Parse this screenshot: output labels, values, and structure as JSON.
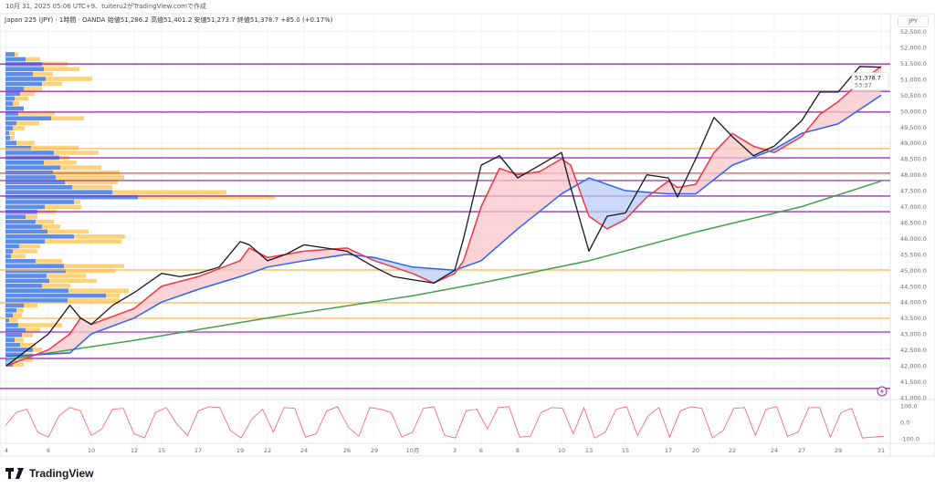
{
  "caption": "10月 31, 2025 05:06 UTC+9、tuiteru2がTradingView.comで作成",
  "legend": "Japan 225 (JPY) · 1時間 · OANDA  始値51,286.2  高値51,401.2  安値51,273.7  終値51,378.7  +85.0 (+0.17%)",
  "currency_label": "JPY",
  "logo_text": "TradingView",
  "colors": {
    "price": "#131722",
    "ma_fast": "#f23645",
    "ma_mid": "#2962ff",
    "ma_slow": "#43a047",
    "fill_up": "#f8c5c8",
    "fill_down": "#b8cdf6",
    "support_purple": "#9c27b0",
    "level_orange": "#ffb74d",
    "level_red": "#ef5350",
    "vp_blue": "#5b8def",
    "vp_yellow": "#ffd27a"
  },
  "chart_data": {
    "type": "line",
    "title": "Japan 225 (JPY) · 1時間 · OANDA",
    "ylim": [
      41000,
      52500
    ],
    "grid": true,
    "y_ticks": [
      "52,500.0",
      "52,000.0",
      "51,500.0",
      "51,000.0",
      "50,500.0",
      "50,000.0",
      "49,500.0",
      "49,000.0",
      "48,500.0",
      "48,000.0",
      "47,500.0",
      "47,000.0",
      "46,500.0",
      "46,000.0",
      "45,500.0",
      "45,000.0",
      "44,500.0",
      "44,000.0",
      "43,500.0",
      "43,000.0",
      "42,500.0",
      "42,000.0",
      "41,500.0",
      "41,000.0"
    ],
    "x_ticks": [
      {
        "date": "09-04",
        "label": "4"
      },
      {
        "date": "09-06",
        "label": "6"
      },
      {
        "date": "09-10",
        "label": "10"
      },
      {
        "date": "09-12",
        "label": "12"
      },
      {
        "date": "09-15",
        "label": "15"
      },
      {
        "date": "09-17",
        "label": "17"
      },
      {
        "date": "09-19",
        "label": "19"
      },
      {
        "date": "09-22",
        "label": "22"
      },
      {
        "date": "09-24",
        "label": "24"
      },
      {
        "date": "09-26",
        "label": "26"
      },
      {
        "date": "09-29",
        "label": "29"
      },
      {
        "date": "10-01",
        "label": "10月"
      },
      {
        "date": "10-03",
        "label": "3"
      },
      {
        "date": "10-06",
        "label": "6"
      },
      {
        "date": "10-08",
        "label": "8"
      },
      {
        "date": "10-10",
        "label": "10"
      },
      {
        "date": "10-13",
        "label": "13"
      },
      {
        "date": "10-15",
        "label": "15"
      },
      {
        "date": "10-17",
        "label": "17"
      },
      {
        "date": "10-20",
        "label": "20"
      },
      {
        "date": "10-22",
        "label": "22"
      },
      {
        "date": "10-24",
        "label": "24"
      },
      {
        "date": "10-27",
        "label": "27"
      },
      {
        "date": "10-29",
        "label": "29"
      },
      {
        "date": "10-31",
        "label": "31"
      }
    ],
    "last_price": "51,378.7",
    "countdown": "53:37",
    "series": [
      {
        "key": "price",
        "points": [
          [
            "09-04",
            42000
          ],
          [
            "09-05",
            42500
          ],
          [
            "09-06",
            43000
          ],
          [
            "09-08",
            43900
          ],
          [
            "09-09",
            43500
          ],
          [
            "09-10",
            43300
          ],
          [
            "09-11",
            43900
          ],
          [
            "09-12",
            44300
          ],
          [
            "09-15",
            44900
          ],
          [
            "09-16",
            44800
          ],
          [
            "09-17",
            44900
          ],
          [
            "09-18",
            45100
          ],
          [
            "09-19",
            45900
          ],
          [
            "09-20",
            45800
          ],
          [
            "09-22",
            45300
          ],
          [
            "09-23",
            45500
          ],
          [
            "09-24",
            45800
          ],
          [
            "09-25",
            45700
          ],
          [
            "09-26",
            45600
          ],
          [
            "09-29",
            45100
          ],
          [
            "09-30",
            44800
          ],
          [
            "10-01",
            44700
          ],
          [
            "10-02",
            44600
          ],
          [
            "10-03",
            45000
          ],
          [
            "10-04",
            46000
          ],
          [
            "10-06",
            48300
          ],
          [
            "10-07",
            48600
          ],
          [
            "10-08",
            47900
          ],
          [
            "10-09",
            48300
          ],
          [
            "10-10",
            48700
          ],
          [
            "10-11",
            47600
          ],
          [
            "10-13",
            45600
          ],
          [
            "10-14",
            46700
          ],
          [
            "10-15",
            46800
          ],
          [
            "10-16",
            48000
          ],
          [
            "10-17",
            47900
          ],
          [
            "10-18",
            47300
          ],
          [
            "10-20",
            48500
          ],
          [
            "10-21",
            49800
          ],
          [
            "10-22",
            49200
          ],
          [
            "10-23",
            48600
          ],
          [
            "10-24",
            48900
          ],
          [
            "10-27",
            49700
          ],
          [
            "10-28",
            50600
          ],
          [
            "10-29",
            50600
          ],
          [
            "10-30",
            51400
          ],
          [
            "10-31",
            51379
          ]
        ]
      },
      {
        "key": "ma_fast",
        "points": [
          [
            "09-04",
            42000
          ],
          [
            "09-06",
            42500
          ],
          [
            "09-08",
            43000
          ],
          [
            "09-09",
            43500
          ],
          [
            "09-10",
            43300
          ],
          [
            "09-12",
            43800
          ],
          [
            "09-15",
            44500
          ],
          [
            "09-17",
            44800
          ],
          [
            "09-19",
            45300
          ],
          [
            "09-20",
            45700
          ],
          [
            "09-22",
            45400
          ],
          [
            "09-24",
            45600
          ],
          [
            "09-26",
            45700
          ],
          [
            "09-29",
            45300
          ],
          [
            "10-01",
            44900
          ],
          [
            "10-02",
            44600
          ],
          [
            "10-03",
            44900
          ],
          [
            "10-04",
            45300
          ],
          [
            "10-06",
            47000
          ],
          [
            "10-07",
            48200
          ],
          [
            "10-08",
            48000
          ],
          [
            "10-09",
            48100
          ],
          [
            "10-10",
            48500
          ],
          [
            "10-11",
            48300
          ],
          [
            "10-13",
            46700
          ],
          [
            "10-14",
            46300
          ],
          [
            "10-15",
            46600
          ],
          [
            "10-16",
            47300
          ],
          [
            "10-17",
            47800
          ],
          [
            "10-18",
            47600
          ],
          [
            "10-20",
            47700
          ],
          [
            "10-21",
            48700
          ],
          [
            "10-22",
            49300
          ],
          [
            "10-23",
            48900
          ],
          [
            "10-24",
            48700
          ],
          [
            "10-27",
            49200
          ],
          [
            "10-28",
            49900
          ],
          [
            "10-29",
            50300
          ],
          [
            "10-30",
            50900
          ],
          [
            "10-31",
            51400
          ]
        ]
      },
      {
        "key": "ma_mid",
        "points": [
          [
            "09-04",
            42300
          ],
          [
            "09-08",
            42400
          ],
          [
            "09-10",
            43000
          ],
          [
            "09-12",
            43500
          ],
          [
            "09-15",
            44000
          ],
          [
            "09-17",
            44400
          ],
          [
            "09-19",
            44800
          ],
          [
            "09-22",
            45100
          ],
          [
            "09-24",
            45300
          ],
          [
            "09-26",
            45500
          ],
          [
            "09-29",
            45400
          ],
          [
            "10-01",
            45100
          ],
          [
            "10-03",
            45000
          ],
          [
            "10-06",
            45300
          ],
          [
            "10-08",
            46300
          ],
          [
            "10-10",
            47400
          ],
          [
            "10-13",
            47900
          ],
          [
            "10-15",
            47500
          ],
          [
            "10-17",
            47400
          ],
          [
            "10-20",
            47400
          ],
          [
            "10-22",
            48300
          ],
          [
            "10-24",
            48800
          ],
          [
            "10-27",
            49300
          ],
          [
            "10-29",
            49600
          ],
          [
            "10-31",
            50500
          ]
        ]
      },
      {
        "key": "ma_slow",
        "points": [
          [
            "09-04",
            42200
          ],
          [
            "09-12",
            42800
          ],
          [
            "09-22",
            43500
          ],
          [
            "10-01",
            44200
          ],
          [
            "10-06",
            44600
          ],
          [
            "10-13",
            45300
          ],
          [
            "10-20",
            46200
          ],
          [
            "10-27",
            47000
          ],
          [
            "10-31",
            47800
          ]
        ]
      }
    ],
    "levels": [
      {
        "price": 51480,
        "color": "support_purple"
      },
      {
        "price": 50620,
        "color": "support_purple"
      },
      {
        "price": 49970,
        "color": "support_purple"
      },
      {
        "price": 48820,
        "color": "level_orange"
      },
      {
        "price": 48530,
        "color": "support_purple"
      },
      {
        "price": 48050,
        "color": "level_red"
      },
      {
        "price": 47820,
        "color": "support_purple"
      },
      {
        "price": 47330,
        "color": "support_purple"
      },
      {
        "price": 46840,
        "color": "support_purple"
      },
      {
        "price": 45010,
        "color": "level_orange"
      },
      {
        "price": 43980,
        "color": "level_orange"
      },
      {
        "price": 43490,
        "color": "level_orange"
      },
      {
        "price": 43060,
        "color": "support_purple"
      },
      {
        "price": 42230,
        "color": "support_purple"
      },
      {
        "price": 41290,
        "color": "support_purple"
      }
    ],
    "volume_profile": {
      "price_top": 51850,
      "price_bottom": 41950,
      "rows": [
        [
          10,
          14
        ],
        [
          22,
          38
        ],
        [
          40,
          68
        ],
        [
          42,
          81
        ],
        [
          30,
          52
        ],
        [
          44,
          95
        ],
        [
          40,
          62
        ],
        [
          20,
          40
        ],
        [
          16,
          32
        ],
        [
          10,
          25
        ],
        [
          8,
          15
        ],
        [
          20,
          20
        ],
        [
          14,
          54
        ],
        [
          50,
          86
        ],
        [
          12,
          37
        ],
        [
          8,
          21
        ],
        [
          4,
          10
        ],
        [
          5,
          10
        ],
        [
          12,
          32
        ],
        [
          28,
          80
        ],
        [
          53,
          102
        ],
        [
          59,
          70
        ],
        [
          42,
          78
        ],
        [
          60,
          105
        ],
        [
          52,
          125
        ],
        [
          55,
          130
        ],
        [
          65,
          123
        ],
        [
          73,
          117
        ],
        [
          117,
          242
        ],
        [
          145,
          295
        ],
        [
          75,
          82
        ],
        [
          43,
          83
        ],
        [
          35,
          55
        ],
        [
          22,
          35
        ],
        [
          33,
          53
        ],
        [
          40,
          60
        ],
        [
          46,
          91
        ],
        [
          75,
          131
        ],
        [
          43,
          127
        ],
        [
          15,
          38
        ],
        [
          8,
          35
        ],
        [
          6,
          22
        ],
        [
          33,
          62
        ],
        [
          64,
          130
        ],
        [
          66,
          120
        ],
        [
          45,
          88
        ],
        [
          48,
          100
        ],
        [
          40,
          71
        ],
        [
          69,
          135
        ],
        [
          110,
          125
        ],
        [
          68,
          125
        ],
        [
          20,
          35
        ],
        [
          12,
          20
        ],
        [
          8,
          18
        ],
        [
          4,
          13
        ],
        [
          14,
          62
        ],
        [
          22,
          38
        ],
        [
          18,
          30
        ],
        [
          10,
          20
        ],
        [
          16,
          33
        ],
        [
          30,
          40
        ],
        [
          20,
          30
        ],
        [
          12,
          30
        ],
        [
          8,
          20
        ]
      ]
    },
    "oscillator": {
      "ylim": [
        -100,
        100
      ],
      "y_ticks": [
        "100.0",
        "0.0",
        "-100.0"
      ],
      "values": [
        -20,
        60,
        80,
        -60,
        -90,
        40,
        90,
        70,
        -80,
        -40,
        80,
        85,
        -70,
        -95,
        60,
        90,
        -10,
        -80,
        70,
        95,
        90,
        -50,
        -95,
        20,
        80,
        -60,
        90,
        85,
        -90,
        -70,
        70,
        95,
        -30,
        -85,
        90,
        80,
        60,
        -90,
        -60,
        85,
        95,
        -80,
        -95,
        70,
        80,
        -40,
        90,
        95,
        -90,
        -85,
        60,
        90,
        85,
        -70,
        90,
        -95,
        -60,
        80,
        95,
        -80,
        40,
        90,
        -90,
        70,
        95,
        85,
        -95,
        -50,
        85,
        90,
        -80,
        80,
        95,
        -85,
        -60,
        90,
        90,
        -90,
        60,
        85,
        -95,
        -90,
        -85
      ]
    }
  }
}
